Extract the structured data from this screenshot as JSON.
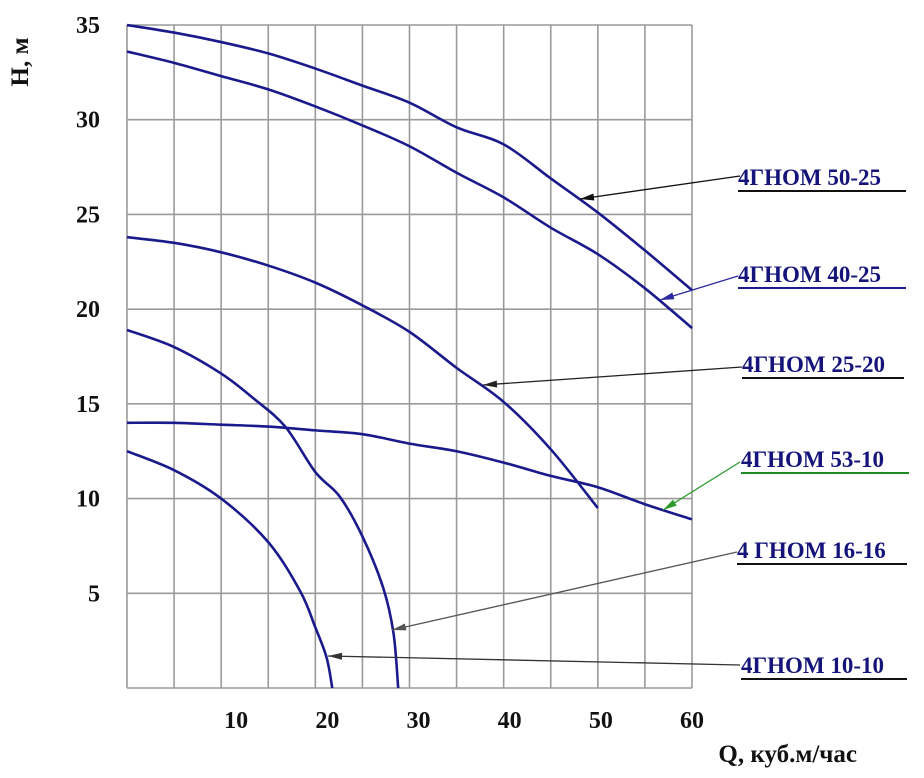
{
  "chart_data": {
    "type": "line",
    "xlabel": "Q, куб.м/час",
    "ylabel": "H, м",
    "xlim": [
      0,
      60
    ],
    "ylim": [
      0,
      35
    ],
    "x_ticks": [
      10,
      20,
      30,
      40,
      50,
      60
    ],
    "y_ticks": [
      5,
      10,
      15,
      20,
      25,
      30,
      35
    ],
    "grid": true,
    "x_grid_step": 5,
    "y_grid_step": 5,
    "curve_color": "#1a1a8c",
    "series": [
      {
        "name": "4ГНОМ 50-25",
        "label_color": "#111111",
        "arrow_color": "#111111",
        "points": [
          [
            0,
            35
          ],
          [
            5,
            34.6
          ],
          [
            10,
            34.1
          ],
          [
            15,
            33.5
          ],
          [
            20,
            32.7
          ],
          [
            25,
            31.8
          ],
          [
            30,
            30.9
          ],
          [
            35,
            29.6
          ],
          [
            40,
            28.7
          ],
          [
            45,
            26.9
          ],
          [
            50,
            25.1
          ],
          [
            55,
            23.1
          ],
          [
            60,
            21.0
          ]
        ]
      },
      {
        "name": "4ГНОМ 40-25",
        "label_color": "#1a1a8c",
        "arrow_color": "#2a2a9c",
        "points": [
          [
            0,
            33.6
          ],
          [
            5,
            33.0
          ],
          [
            10,
            32.3
          ],
          [
            15,
            31.6
          ],
          [
            20,
            30.7
          ],
          [
            25,
            29.7
          ],
          [
            30,
            28.6
          ],
          [
            35,
            27.2
          ],
          [
            40,
            25.9
          ],
          [
            45,
            24.3
          ],
          [
            50,
            22.9
          ],
          [
            55,
            21.1
          ],
          [
            60,
            19.0
          ]
        ]
      },
      {
        "name": "4ГНОМ 25-20",
        "label_color": "#111111",
        "arrow_color": "#222222",
        "points": [
          [
            0,
            23.8
          ],
          [
            5,
            23.5
          ],
          [
            10,
            23.0
          ],
          [
            15,
            22.3
          ],
          [
            20,
            21.4
          ],
          [
            25,
            20.2
          ],
          [
            30,
            18.8
          ],
          [
            35,
            16.9
          ],
          [
            40,
            15.1
          ],
          [
            45,
            12.6
          ],
          [
            50,
            9.5
          ]
        ]
      },
      {
        "name": "4ГНОМ 53-10",
        "label_color": "#1f8a1f",
        "arrow_color": "#2e9a2e",
        "points": [
          [
            0,
            14.0
          ],
          [
            5,
            14.0
          ],
          [
            10,
            13.9
          ],
          [
            15,
            13.8
          ],
          [
            20,
            13.6
          ],
          [
            25,
            13.4
          ],
          [
            30,
            12.9
          ],
          [
            35,
            12.5
          ],
          [
            40,
            11.9
          ],
          [
            45,
            11.2
          ],
          [
            50,
            10.6
          ],
          [
            55,
            9.7
          ],
          [
            60,
            8.9
          ]
        ]
      },
      {
        "name": "4 ГНОМ 16-16",
        "label_color": "#111111",
        "arrow_color": "#555555",
        "points": [
          [
            0,
            18.9
          ],
          [
            5,
            18.0
          ],
          [
            10,
            16.6
          ],
          [
            13.4,
            15.3
          ],
          [
            16.8,
            13.8
          ],
          [
            20,
            11.4
          ],
          [
            22.6,
            10.1
          ],
          [
            25,
            8.0
          ],
          [
            27.2,
            5.3
          ],
          [
            28.3,
            2.9
          ],
          [
            28.8,
            0
          ]
        ]
      },
      {
        "name": "4ГНОМ 10-10",
        "label_color": "#111111",
        "arrow_color": "#333333",
        "points": [
          [
            0,
            12.5
          ],
          [
            5,
            11.5
          ],
          [
            10,
            10.0
          ],
          [
            15,
            7.7
          ],
          [
            18.4,
            5.1
          ],
          [
            20,
            3.2
          ],
          [
            21.2,
            1.6
          ],
          [
            21.8,
            0
          ]
        ]
      }
    ]
  }
}
